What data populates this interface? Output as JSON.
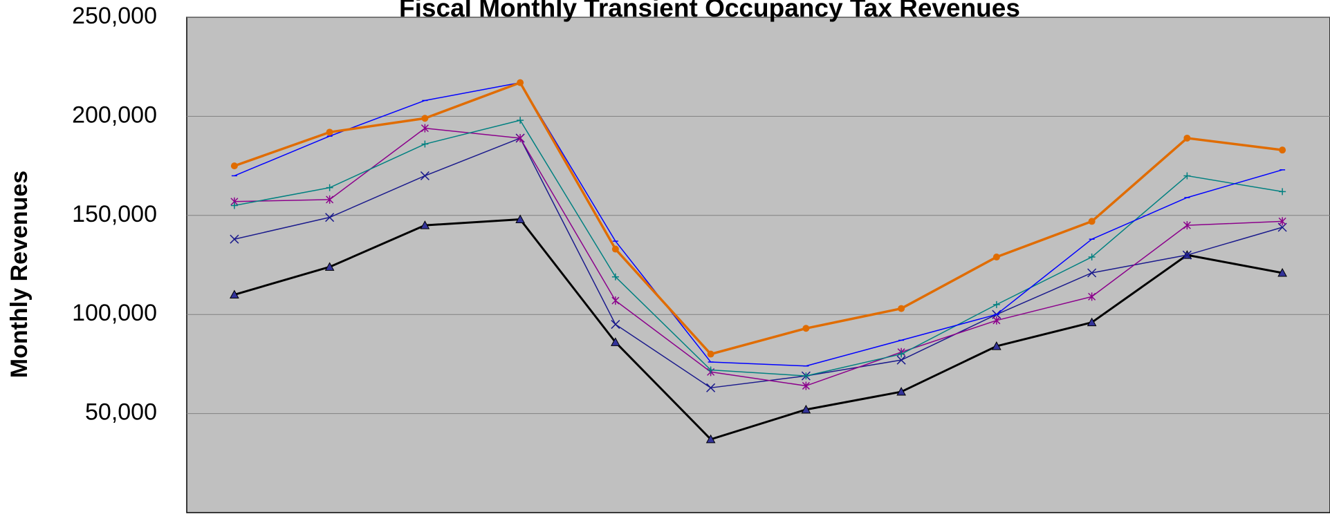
{
  "chart_data": {
    "type": "line",
    "title": "Fiscal Monthly Transient Occupancy Tax Revenues",
    "y_label": "Monthly Revenues",
    "categories": [
      null,
      null,
      null,
      null,
      null,
      null,
      null,
      null,
      null,
      null,
      null,
      null
    ],
    "ylim": [
      0,
      250000
    ],
    "yticks": [
      {
        "value": 50000,
        "label": "50,000"
      },
      {
        "value": 100000,
        "label": "100,000"
      },
      {
        "value": 150000,
        "label": "150,000"
      },
      {
        "value": 200000,
        "label": "200,000"
      },
      {
        "value": 250000,
        "label": "250,000"
      }
    ],
    "grid": true,
    "background": "#c0c0c0",
    "series": [
      {
        "color": "#000000",
        "marker": "triangle",
        "width": 3,
        "values": [
          110000,
          124000,
          145000,
          148000,
          86000,
          37000,
          52000,
          61000,
          84000,
          96000,
          130000,
          121000
        ]
      },
      {
        "color": "#1a1a8c",
        "marker": "x",
        "width": 1.5,
        "values": [
          138000,
          149000,
          170000,
          189000,
          95000,
          63000,
          69000,
          77000,
          100000,
          121000,
          130000,
          144000
        ]
      },
      {
        "color": "#8b008b",
        "marker": "star",
        "width": 1.5,
        "values": [
          157000,
          158000,
          194000,
          189000,
          107000,
          71000,
          64000,
          81000,
          97000,
          109000,
          145000,
          147000
        ]
      },
      {
        "color": "#008080",
        "marker": "plus",
        "width": 1.5,
        "values": [
          155000,
          164000,
          186000,
          198000,
          119000,
          72000,
          69000,
          80000,
          105000,
          129000,
          170000,
          162000
        ]
      },
      {
        "color": "#0000ff",
        "marker": "dash",
        "width": 1.5,
        "values": [
          170000,
          190000,
          208000,
          217000,
          137000,
          76000,
          74000,
          87000,
          100000,
          138000,
          159000,
          173000
        ]
      },
      {
        "color": "#e06c00",
        "marker": "circle",
        "width": 3.5,
        "values": [
          175000,
          192000,
          199000,
          217000,
          133000,
          80000,
          93000,
          103000,
          129000,
          147000,
          189000,
          183000
        ]
      }
    ]
  }
}
